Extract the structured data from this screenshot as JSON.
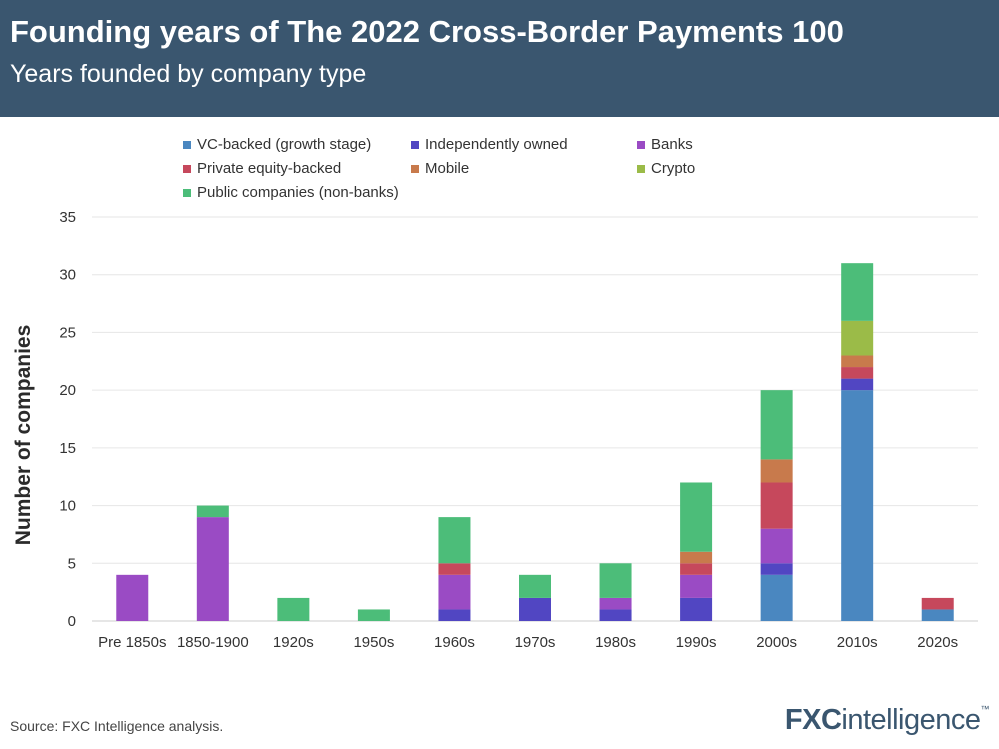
{
  "header": {
    "title": "Founding years of The 2022 Cross-Border Payments 100",
    "subtitle": "Years founded by company type",
    "background": "#3a566f"
  },
  "legend": {
    "items": [
      {
        "label": "VC-backed (growth stage)",
        "color": "#4a87c0"
      },
      {
        "label": "Independently owned",
        "color": "#5146c2"
      },
      {
        "label": "Banks",
        "color": "#9a4bc4"
      },
      {
        "label": "Private equity-backed",
        "color": "#c6485c"
      },
      {
        "label": "Mobile",
        "color": "#c87a4c"
      },
      {
        "label": "Crypto",
        "color": "#9bbb48"
      },
      {
        "label": "Public companies (non-banks)",
        "color": "#4cbd79"
      }
    ]
  },
  "chart_data": {
    "type": "bar",
    "stacked": true,
    "title": "Founding years of The 2022 Cross-Border Payments 100",
    "xlabel": "",
    "ylabel": "Number of companies",
    "ylim": [
      0,
      35
    ],
    "yticks": [
      "0",
      "5",
      "10",
      "15",
      "20",
      "25",
      "30",
      "35"
    ],
    "categories": [
      "Pre 1850s",
      "1850-1900",
      "1920s",
      "1950s",
      "1960s",
      "1970s",
      "1980s",
      "1990s",
      "2000s",
      "2010s",
      "2020s"
    ],
    "series": [
      {
        "name": "VC-backed (growth stage)",
        "color": "#4a87c0",
        "values": [
          0,
          0,
          0,
          0,
          0,
          0,
          0,
          0,
          4,
          20,
          1
        ]
      },
      {
        "name": "Independently owned",
        "color": "#5146c2",
        "values": [
          0,
          0,
          0,
          0,
          1,
          2,
          1,
          2,
          1,
          1,
          0
        ]
      },
      {
        "name": "Banks",
        "color": "#9a4bc4",
        "values": [
          4,
          9,
          0,
          0,
          3,
          0,
          1,
          2,
          3,
          0,
          0
        ]
      },
      {
        "name": "Private equity-backed",
        "color": "#c6485c",
        "values": [
          0,
          0,
          0,
          0,
          1,
          0,
          0,
          1,
          4,
          1,
          1
        ]
      },
      {
        "name": "Mobile",
        "color": "#c87a4c",
        "values": [
          0,
          0,
          0,
          0,
          0,
          0,
          0,
          1,
          2,
          1,
          0
        ]
      },
      {
        "name": "Crypto",
        "color": "#9bbb48",
        "values": [
          0,
          0,
          0,
          0,
          0,
          0,
          0,
          0,
          0,
          3,
          0
        ]
      },
      {
        "name": "Public companies (non-banks)",
        "color": "#4cbd79",
        "values": [
          0,
          1,
          2,
          1,
          4,
          2,
          3,
          6,
          6,
          5,
          0
        ]
      }
    ],
    "grid": true,
    "legend": "top"
  },
  "footer": {
    "source": "Source: FXC Intelligence analysis.",
    "logo_fx": "FXC",
    "logo_rest": "intelligence",
    "logo_tm": "™"
  }
}
